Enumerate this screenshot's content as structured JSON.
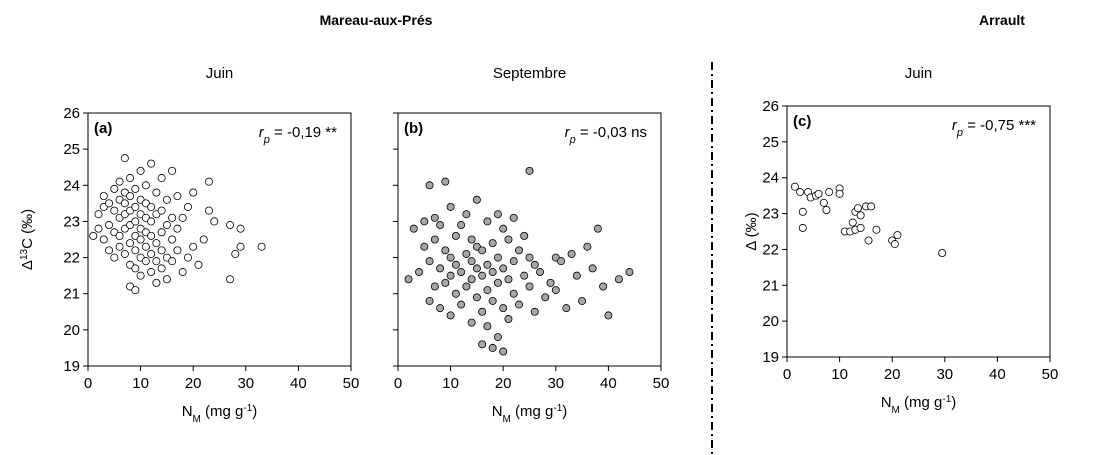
{
  "figure": {
    "groups": [
      "Mareau-aux-Prés",
      "Arrault"
    ]
  },
  "chart_data": [
    {
      "type": "scatter",
      "title": "Juin",
      "panel_label": "(a)",
      "annotation": {
        "r": "r",
        "sub": "p",
        "text": " = -0,19 **"
      },
      "y_label": [
        {
          "text": "Δ"
        },
        {
          "text": "13",
          "pos": "sup"
        },
        {
          "text": "C (‰)"
        }
      ],
      "x_label": [
        {
          "text": "N"
        },
        {
          "text": "M",
          "pos": "sub"
        },
        {
          "text": " (mg g"
        },
        {
          "text": "-1",
          "pos": "sup"
        },
        {
          "text": ")"
        }
      ],
      "marker_color": "#ffffff",
      "xlim": [
        0,
        50
      ],
      "xticks": [
        0,
        10,
        20,
        30,
        40,
        50
      ],
      "ylim": [
        19,
        26
      ],
      "yticks": [
        19,
        20,
        21,
        22,
        23,
        24,
        25,
        26
      ],
      "ytick_labels": true,
      "x": [
        1,
        2,
        2,
        3,
        3,
        3,
        4,
        4,
        4,
        5,
        5,
        5,
        5,
        6,
        6,
        6,
        6,
        6,
        7,
        7,
        7,
        7,
        7,
        7,
        8,
        8,
        8,
        8,
        8,
        8,
        8,
        9,
        9,
        9,
        9,
        9,
        9,
        9,
        10,
        10,
        10,
        10,
        10,
        10,
        10,
        11,
        11,
        11,
        11,
        11,
        11,
        12,
        12,
        12,
        12,
        12,
        12,
        13,
        13,
        13,
        13,
        13,
        14,
        14,
        14,
        14,
        14,
        15,
        15,
        15,
        15,
        16,
        16,
        16,
        16,
        17,
        17,
        17,
        18,
        18,
        19,
        19,
        20,
        20,
        21,
        22,
        23,
        23,
        24,
        27,
        27,
        28,
        29,
        29,
        33
      ],
      "y": [
        22.6,
        22.8,
        23.2,
        22.5,
        23.4,
        23.7,
        22.2,
        22.9,
        23.5,
        22.0,
        22.7,
        23.3,
        23.9,
        22.3,
        22.6,
        23.1,
        23.6,
        24.1,
        22.1,
        22.8,
        23.2,
        23.5,
        23.8,
        24.75,
        21.2,
        21.8,
        22.4,
        22.9,
        23.3,
        23.7,
        24.2,
        21.1,
        21.7,
        22.2,
        22.6,
        23.0,
        23.4,
        23.9,
        21.5,
        22.0,
        22.5,
        22.8,
        23.2,
        23.6,
        24.4,
        21.9,
        22.3,
        22.7,
        23.1,
        23.5,
        24.0,
        21.6,
        22.1,
        22.6,
        23.0,
        23.4,
        24.6,
        21.3,
        21.9,
        22.4,
        23.2,
        23.8,
        21.7,
        22.2,
        22.7,
        23.3,
        24.2,
        21.4,
        22.0,
        22.9,
        23.6,
        21.9,
        22.5,
        23.1,
        24.4,
        22.2,
        22.8,
        23.7,
        21.6,
        23.1,
        22.0,
        23.4,
        22.3,
        23.8,
        21.8,
        22.5,
        23.3,
        24.1,
        23.0,
        21.4,
        22.9,
        22.1,
        22.3,
        22.8,
        22.3
      ]
    },
    {
      "type": "scatter",
      "title": "Septembre",
      "panel_label": "(b)",
      "annotation": {
        "r": "r",
        "sub": "p",
        "text": " = -0,03 ns"
      },
      "x_label": [
        {
          "text": "N"
        },
        {
          "text": "M",
          "pos": "sub"
        },
        {
          "text": " (mg g"
        },
        {
          "text": "-1",
          "pos": "sup"
        },
        {
          "text": ")"
        }
      ],
      "marker_color": "#a6a6a6",
      "xlim": [
        0,
        50
      ],
      "xticks": [
        0,
        10,
        20,
        30,
        40,
        50
      ],
      "ylim": [
        19,
        26
      ],
      "yticks": [
        19,
        20,
        21,
        22,
        23,
        24,
        25,
        26
      ],
      "ytick_labels": false,
      "x": [
        2,
        3,
        4,
        5,
        5,
        6,
        6,
        6,
        7,
        7,
        7,
        8,
        8,
        8,
        9,
        9,
        9,
        10,
        10,
        10,
        10,
        11,
        11,
        11,
        12,
        12,
        12,
        13,
        13,
        13,
        14,
        14,
        14,
        14,
        15,
        15,
        15,
        15,
        16,
        16,
        16,
        16,
        17,
        17,
        17,
        17,
        18,
        18,
        18,
        18,
        19,
        19,
        19,
        19,
        20,
        20,
        20,
        20,
        21,
        21,
        21,
        22,
        22,
        22,
        23,
        23,
        24,
        24,
        25,
        25,
        25,
        26,
        26,
        27,
        28,
        29,
        30,
        30,
        31,
        32,
        33,
        34,
        35,
        36,
        37,
        38,
        39,
        40,
        42,
        44
      ],
      "y": [
        21.4,
        22.8,
        21.6,
        22.3,
        23.0,
        20.8,
        21.9,
        24.0,
        21.2,
        22.5,
        23.1,
        20.6,
        21.7,
        22.9,
        21.3,
        22.2,
        24.1,
        20.4,
        21.5,
        22.0,
        23.4,
        21.0,
        21.8,
        22.6,
        20.7,
        21.6,
        22.9,
        21.2,
        22.1,
        23.2,
        20.2,
        21.4,
        21.9,
        22.5,
        20.9,
        21.7,
        22.3,
        23.6,
        19.6,
        20.5,
        21.5,
        22.2,
        20.1,
        21.1,
        21.8,
        23.0,
        19.5,
        20.8,
        21.6,
        22.4,
        19.8,
        21.3,
        22.0,
        23.2,
        19.4,
        20.6,
        21.7,
        22.8,
        20.3,
        21.4,
        22.5,
        21.0,
        21.9,
        23.1,
        20.7,
        22.2,
        21.5,
        22.6,
        21.2,
        22.0,
        24.4,
        20.5,
        21.8,
        21.6,
        20.9,
        21.3,
        21.1,
        22.0,
        21.9,
        20.6,
        22.1,
        21.5,
        20.8,
        22.3,
        21.7,
        22.8,
        21.2,
        20.4,
        21.4,
        21.6
      ]
    },
    {
      "type": "scatter",
      "title": "Juin",
      "panel_label": "(c)",
      "annotation": {
        "r": "r",
        "sub": "p",
        "text": " = -0,75 ***"
      },
      "y_label": [
        {
          "text": "Δ"
        },
        {
          "text": " (‰)"
        }
      ],
      "x_label": [
        {
          "text": "N"
        },
        {
          "text": "M",
          "pos": "sub"
        },
        {
          "text": " (mg g"
        },
        {
          "text": "-1",
          "pos": "sup"
        },
        {
          "text": ")"
        }
      ],
      "marker_color": "#ffffff",
      "xlim": [
        0,
        50
      ],
      "xticks": [
        0,
        10,
        20,
        30,
        40,
        50
      ],
      "ylim": [
        19,
        26
      ],
      "yticks": [
        19,
        20,
        21,
        22,
        23,
        24,
        25,
        26
      ],
      "ytick_labels": true,
      "x": [
        1.5,
        2.5,
        3,
        3,
        4,
        4.5,
        5.5,
        6,
        7,
        7.5,
        8,
        10,
        10,
        11,
        12,
        12.5,
        13,
        13,
        13.5,
        14,
        14,
        15,
        15.5,
        16,
        17,
        20,
        20.5,
        21,
        29.5
      ],
      "y": [
        23.75,
        23.6,
        23.05,
        22.6,
        23.6,
        23.45,
        23.5,
        23.55,
        23.3,
        23.1,
        23.6,
        23.7,
        23.55,
        22.5,
        22.5,
        22.75,
        22.55,
        23.05,
        23.15,
        22.95,
        22.6,
        23.2,
        22.25,
        23.2,
        22.55,
        22.25,
        22.15,
        22.4,
        21.9
      ]
    }
  ]
}
